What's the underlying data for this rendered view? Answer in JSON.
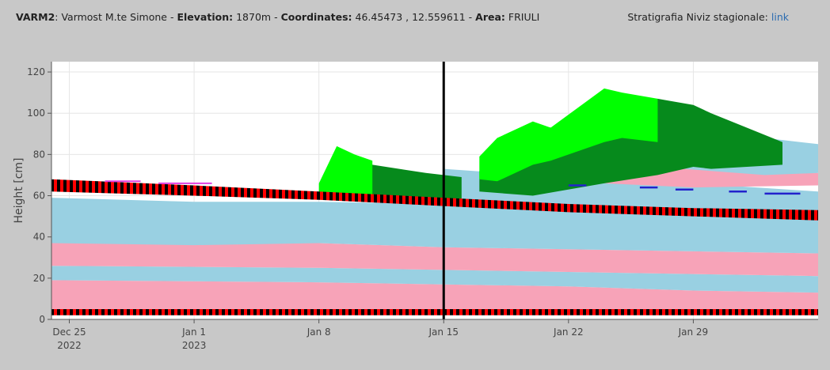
{
  "header": {
    "station_code": "VARM2",
    "station_name": "Varmost M.te Simone",
    "elevation_label": "Elevation:",
    "elevation_value": "1870m",
    "coordinates_label": "Coordinates:",
    "coordinates_value": "46.45473 , 12.559611",
    "area_label": "Area:",
    "area_value": "FRIULI",
    "stratigraphy_label": "Stratigrafia Niviz stagionale:",
    "stratigraphy_link": "link"
  },
  "colors": {
    "background": "#c8c8c8",
    "plot_bg": "#ffffff",
    "grid": "#e6e6e6",
    "light_blue": "#99d0e2",
    "pink": "#f7a3b8",
    "red": "#ff0000",
    "black": "#000000",
    "bright_green": "#00ff00",
    "dark_green": "#068a1c",
    "blue_line": "#2222cc",
    "magenta": "#e040e0"
  },
  "chart_data": {
    "type": "area",
    "title": "",
    "ylabel": "Height [cm]",
    "xlabel": "",
    "ylim": [
      0,
      125
    ],
    "yticks": [
      0,
      20,
      40,
      60,
      80,
      100,
      120
    ],
    "xlim": [
      "2022-12-24",
      "2023-02-05"
    ],
    "xticks": [
      {
        "date": "2022-12-25",
        "label": "Dec 25",
        "sub": "2022"
      },
      {
        "date": "2023-01-01",
        "label": "Jan 1",
        "sub": "2023"
      },
      {
        "date": "2023-01-08",
        "label": "Jan 8",
        "sub": ""
      },
      {
        "date": "2023-01-15",
        "label": "Jan 15",
        "sub": ""
      },
      {
        "date": "2023-01-22",
        "label": "Jan 22",
        "sub": ""
      },
      {
        "date": "2023-01-29",
        "label": "Jan 29",
        "sub": ""
      }
    ],
    "current_date": "2023-01-15",
    "grid": true,
    "layers": [
      {
        "type": "pink",
        "x": [
          "2022-12-24",
          "2023-01-08",
          "2023-01-15",
          "2023-01-22",
          "2023-01-29",
          "2023-02-05"
        ],
        "bottom": [
          3,
          3,
          3,
          3,
          3,
          3
        ],
        "top": [
          19,
          18,
          17,
          16,
          14,
          13
        ]
      },
      {
        "type": "light_blue",
        "x": [
          "2022-12-24",
          "2023-01-08",
          "2023-01-15",
          "2023-01-22",
          "2023-01-29",
          "2023-02-05"
        ],
        "bottom": [
          19,
          18,
          17,
          16,
          14,
          13
        ],
        "top": [
          26,
          25,
          24,
          23,
          22,
          21
        ]
      },
      {
        "type": "pink",
        "x": [
          "2022-12-24",
          "2023-01-08",
          "2023-01-15",
          "2023-01-22",
          "2023-01-29",
          "2023-02-05"
        ],
        "bottom": [
          26,
          25,
          24,
          23,
          22,
          21
        ],
        "top": [
          37,
          37,
          35,
          34,
          33,
          32
        ]
      },
      {
        "type": "light_blue",
        "x": [
          "2022-12-24",
          "2023-01-01",
          "2023-01-08",
          "2023-01-15",
          "2023-01-22",
          "2023-01-29",
          "2023-02-05"
        ],
        "bottom": [
          37,
          36,
          37,
          35,
          34,
          33,
          32
        ],
        "top": [
          59,
          57,
          57,
          56,
          53,
          51,
          49
        ]
      },
      {
        "type": "light_blue",
        "x": [
          "2023-01-15",
          "2023-01-20",
          "2023-01-24",
          "2023-01-29",
          "2023-02-05"
        ],
        "bottom": [
          57,
          55,
          54,
          53,
          51
        ],
        "top": [
          73,
          70,
          68,
          66,
          62
        ]
      },
      {
        "type": "pink",
        "x": [
          "2023-01-24",
          "2023-01-29",
          "2023-02-05"
        ],
        "bottom": [
          66,
          64,
          65
        ],
        "top": [
          80,
          76,
          71
        ]
      },
      {
        "type": "light_blue",
        "x": [
          "2023-01-27",
          "2023-01-30",
          "2023-02-02",
          "2023-02-05"
        ],
        "bottom": [
          74,
          72,
          70,
          71
        ],
        "top": [
          95,
          92,
          88,
          85
        ]
      },
      {
        "type": "dark_green",
        "x": [
          "2023-01-08",
          "2023-01-11",
          "2023-01-14",
          "2023-01-16"
        ],
        "bottom": [
          60,
          59,
          58,
          57
        ],
        "top": [
          60,
          75,
          71,
          69
        ]
      },
      {
        "type": "bright_green",
        "x": [
          "2023-01-08",
          "2023-01-09",
          "2023-01-10",
          "2023-01-11"
        ],
        "bottom": [
          60,
          61,
          61,
          60
        ],
        "top": [
          66,
          84,
          80,
          77
        ]
      },
      {
        "type": "dark_green",
        "x": [
          "2023-01-17",
          "2023-01-20",
          "2023-01-24",
          "2023-01-27",
          "2023-01-29",
          "2023-01-30",
          "2023-02-01",
          "2023-02-03"
        ],
        "bottom": [
          62,
          60,
          66,
          70,
          74,
          73,
          74,
          75
        ],
        "top": [
          72,
          94,
          90,
          107,
          104,
          100,
          93,
          86
        ]
      },
      {
        "type": "bright_green",
        "x": [
          "2023-01-17",
          "2023-01-18",
          "2023-01-20",
          "2023-01-21",
          "2023-01-24",
          "2023-01-25",
          "2023-01-27"
        ],
        "bottom": [
          68,
          67,
          75,
          77,
          86,
          88,
          86
        ],
        "top": [
          79,
          88,
          96,
          93,
          112,
          110,
          107
        ]
      }
    ],
    "black_red_bands": [
      {
        "x": [
          "2022-12-24",
          "2023-02-05"
        ],
        "bottom": [
          2,
          2
        ],
        "top": [
          5,
          5
        ]
      },
      {
        "x": [
          "2022-12-24",
          "2023-01-01",
          "2023-01-08",
          "2023-01-15",
          "2023-01-22",
          "2023-01-29",
          "2023-02-05"
        ],
        "bottom": [
          62,
          60,
          58,
          55,
          52,
          50,
          48
        ],
        "top": [
          68,
          65,
          62,
          59,
          56,
          54,
          53
        ]
      }
    ],
    "blue_marks": [
      {
        "x": [
          "2023-01-22",
          "2023-01-23"
        ],
        "y": 65
      },
      {
        "x": [
          "2023-01-26",
          "2023-01-27"
        ],
        "y": 64
      },
      {
        "x": [
          "2023-01-28",
          "2023-01-29"
        ],
        "y": 63
      },
      {
        "x": [
          "2023-01-31",
          "2023-02-01"
        ],
        "y": 62
      },
      {
        "x": [
          "2023-02-02",
          "2023-02-04"
        ],
        "y": 61
      }
    ],
    "magenta_marks": [
      {
        "x": [
          "2022-12-27",
          "2022-12-29"
        ],
        "y": 67
      },
      {
        "x": [
          "2022-12-30",
          "2023-01-02"
        ],
        "y": 66
      }
    ]
  }
}
